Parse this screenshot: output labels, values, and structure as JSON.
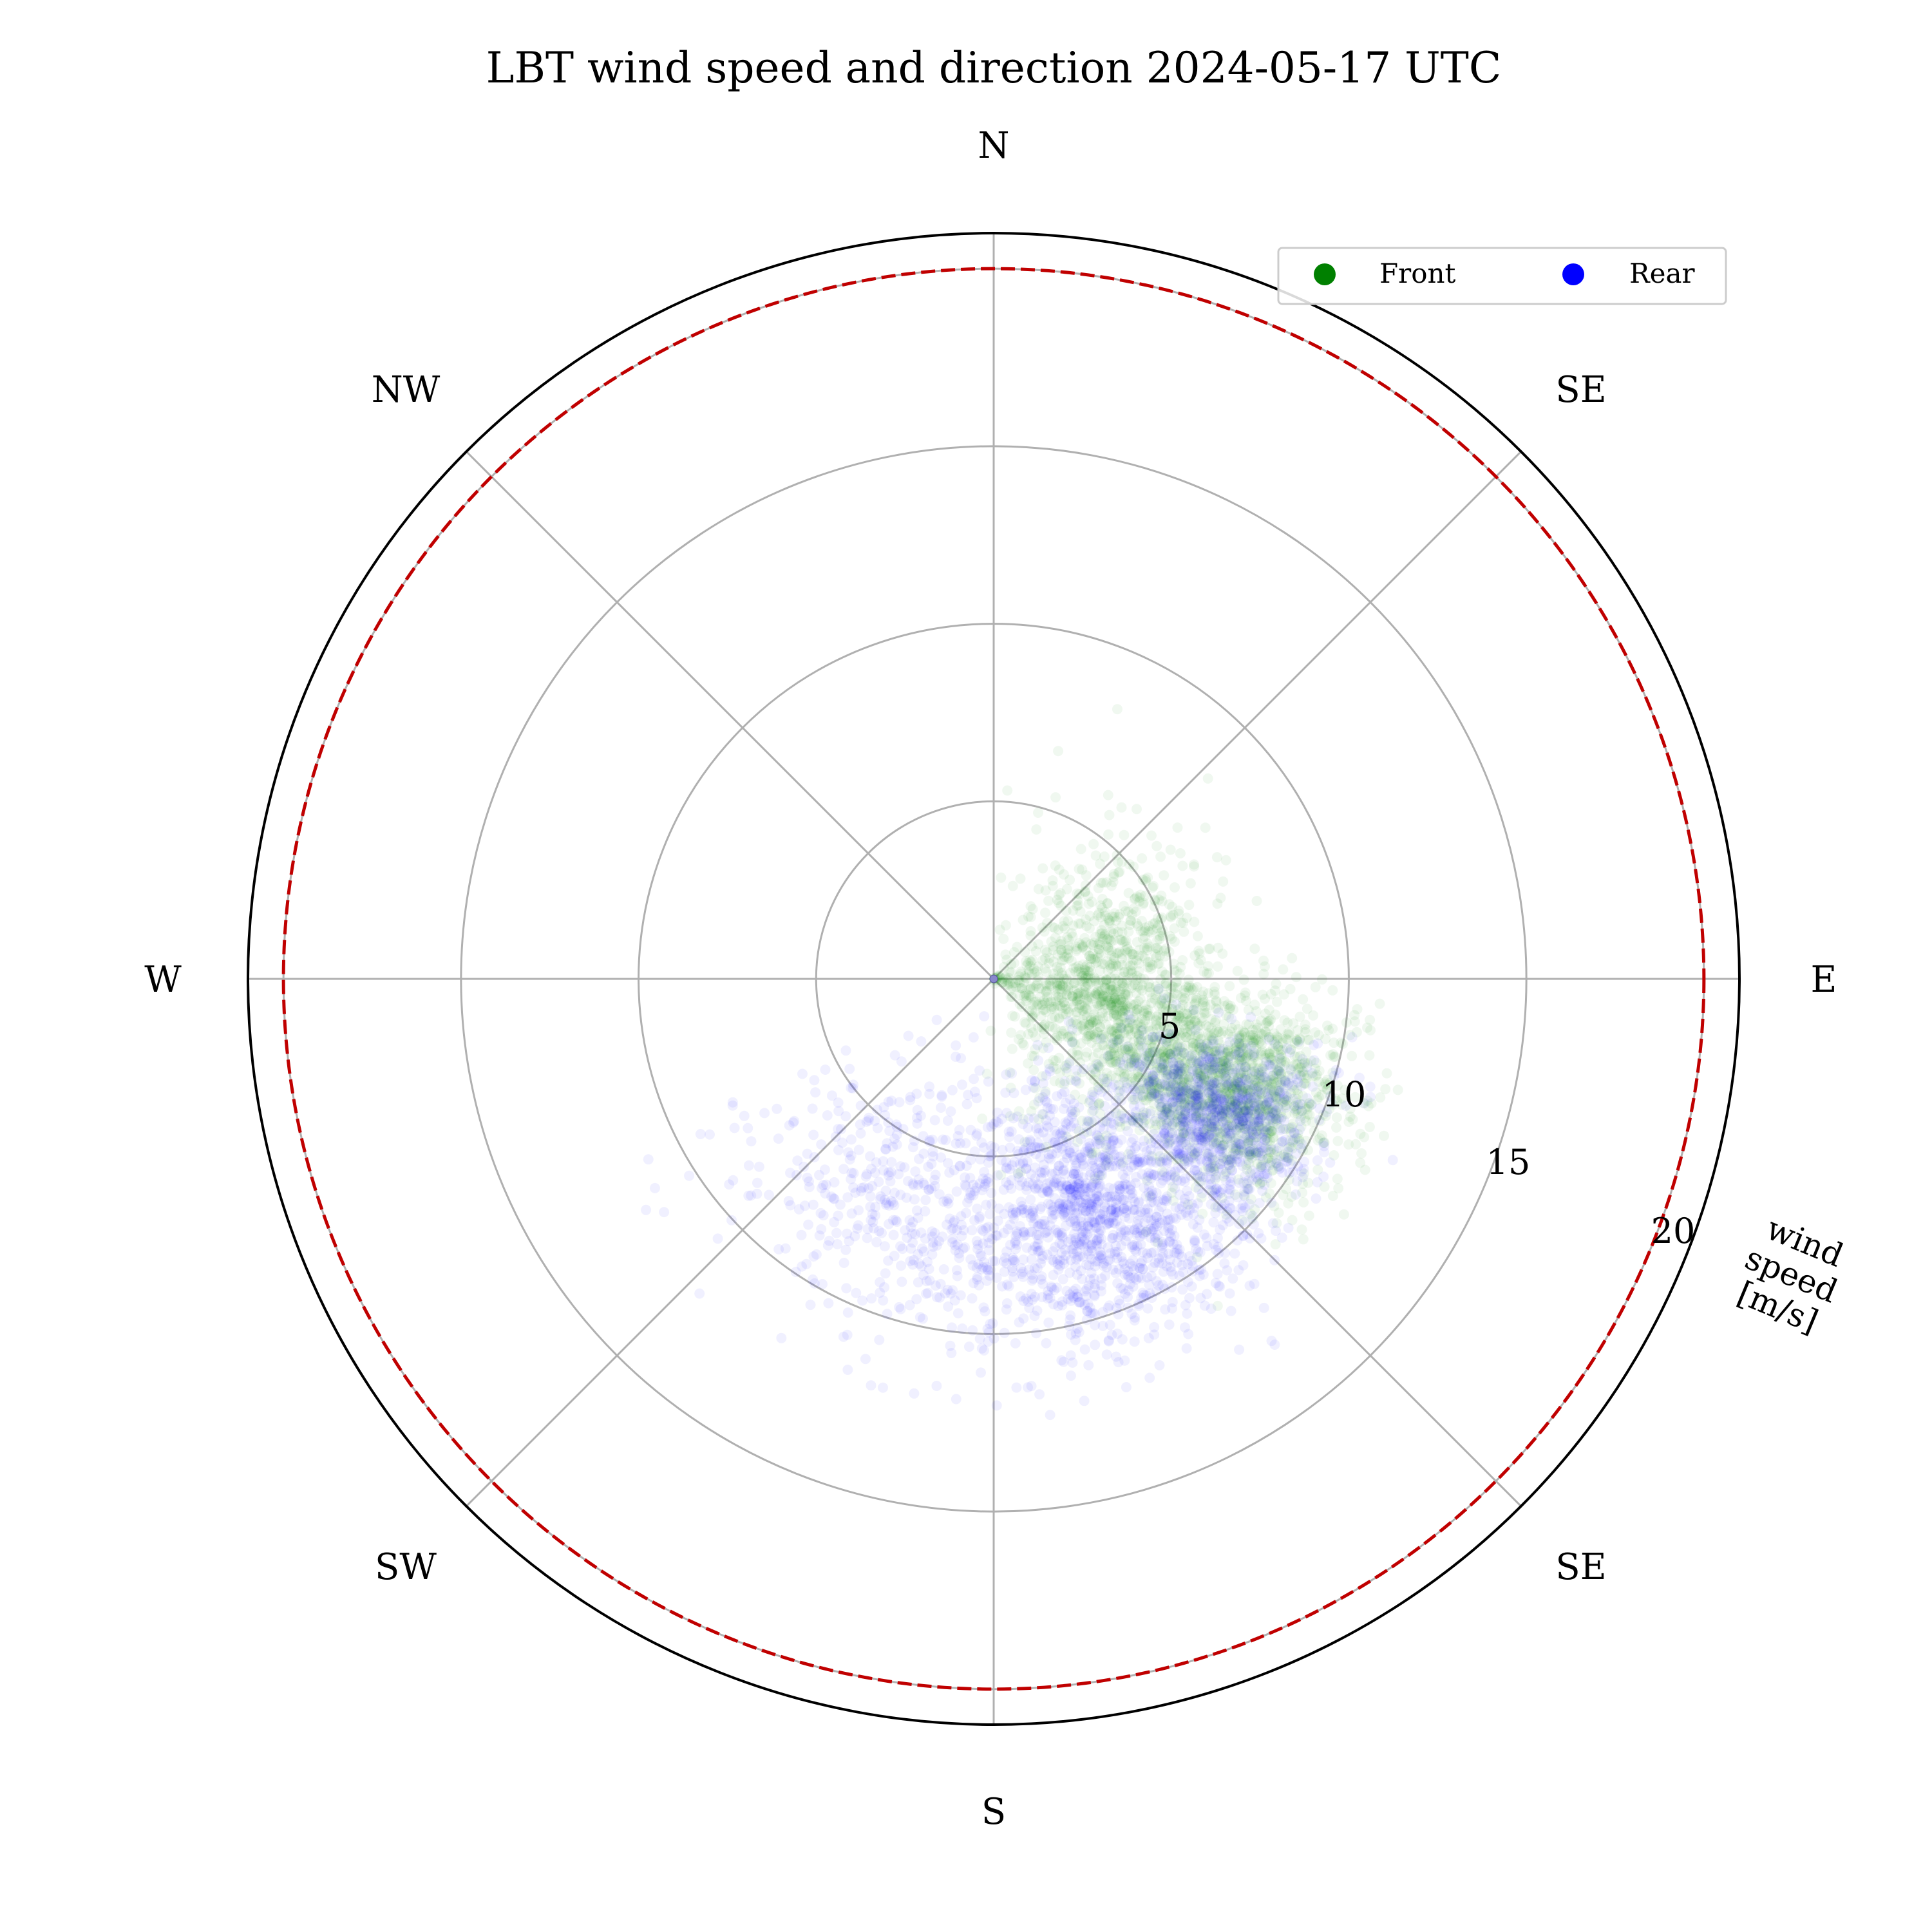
{
  "chart_data": {
    "type": "scatter",
    "polar": true,
    "title": "LBT wind speed and direction 2024-05-17 UTC",
    "direction_labels": [
      "N",
      "SE",
      "E",
      "SE",
      "S",
      "SW",
      "W",
      "NW"
    ],
    "radial_axis": {
      "label": "wind speed [m/s]",
      "label_lines": [
        "wind",
        "speed",
        "[m/s]"
      ],
      "ticks": [
        5,
        10,
        15,
        20
      ],
      "rlim": [
        0,
        21
      ]
    },
    "limit_circle": {
      "value": 20,
      "color": "#c00000",
      "style": "dashed"
    },
    "grid": true,
    "legend": {
      "placement": "top-right",
      "entries": [
        {
          "name": "Front",
          "color": "#008000"
        },
        {
          "name": "Rear",
          "color": "#0000ff"
        }
      ]
    },
    "series": [
      {
        "name": "Front",
        "color": "#008000",
        "clusters": [
          {
            "direction_deg": 95,
            "speed": 3.5,
            "sd_direction_deg": 30,
            "sd_speed": 1.5,
            "weight": 0.45
          },
          {
            "direction_deg": 114,
            "speed": 7.5,
            "sd_direction_deg": 10,
            "sd_speed": 1.8,
            "weight": 0.55
          }
        ],
        "direction_range_deg": [
          0,
          190
        ],
        "speed_range": [
          0,
          12
        ]
      },
      {
        "name": "Rear",
        "color": "#0000ff",
        "clusters": [
          {
            "direction_deg": 122,
            "speed": 7.5,
            "sd_direction_deg": 9,
            "sd_speed": 1.5,
            "weight": 0.35
          },
          {
            "direction_deg": 155,
            "speed": 7.5,
            "sd_direction_deg": 12,
            "sd_speed": 1.8,
            "weight": 0.4
          },
          {
            "direction_deg": 195,
            "speed": 7.0,
            "sd_direction_deg": 25,
            "sd_speed": 2.0,
            "weight": 0.25
          }
        ],
        "direction_range_deg": [
          90,
          245
        ],
        "speed_range": [
          0,
          13
        ]
      }
    ]
  }
}
